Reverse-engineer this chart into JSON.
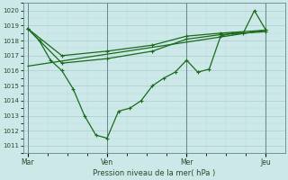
{
  "xlabel": "Pression niveau de la mer( hPa )",
  "bg_color": "#cce8e8",
  "line_color": "#1a6b1a",
  "grid_major_color": "#aacece",
  "grid_minor_color": "#bbdcdc",
  "ylim": [
    1010.5,
    1020.5
  ],
  "yticks": [
    1011,
    1012,
    1013,
    1014,
    1015,
    1016,
    1017,
    1018,
    1019,
    1020
  ],
  "day_labels": [
    "Mar",
    "Ven",
    "Mer",
    "Jeu"
  ],
  "day_positions": [
    0.0,
    0.333,
    0.667,
    1.0
  ],
  "xlim": [
    -0.02,
    1.08
  ],
  "series1_x": [
    0.0,
    0.048,
    0.095,
    0.143,
    0.19,
    0.238,
    0.286,
    0.333,
    0.381,
    0.429,
    0.476,
    0.524,
    0.571,
    0.619,
    0.667,
    0.714,
    0.762,
    0.81,
    0.857,
    0.905,
    0.952,
    1.0
  ],
  "series1_y": [
    1018.8,
    1018.0,
    1016.7,
    1016.0,
    1014.8,
    1013.0,
    1011.7,
    1011.5,
    1013.3,
    1013.5,
    1014.0,
    1015.0,
    1015.5,
    1015.9,
    1016.7,
    1015.9,
    1016.1,
    1018.3,
    1018.5,
    1018.5,
    1020.0,
    1018.7
  ],
  "series2_x": [
    0.0,
    0.143,
    0.333,
    0.524,
    0.667,
    0.81,
    1.0
  ],
  "series2_y": [
    1018.8,
    1017.0,
    1017.3,
    1017.7,
    1018.3,
    1018.5,
    1018.7
  ],
  "series3_x": [
    0.0,
    0.143,
    0.333,
    0.524,
    0.667,
    0.81,
    1.0
  ],
  "series3_y": [
    1018.8,
    1016.5,
    1016.8,
    1017.3,
    1018.1,
    1018.4,
    1018.6
  ],
  "series4_x": [
    0.0,
    1.0
  ],
  "series4_y": [
    1016.3,
    1018.7
  ],
  "vline_color": "#668888",
  "spine_color": "#668888"
}
